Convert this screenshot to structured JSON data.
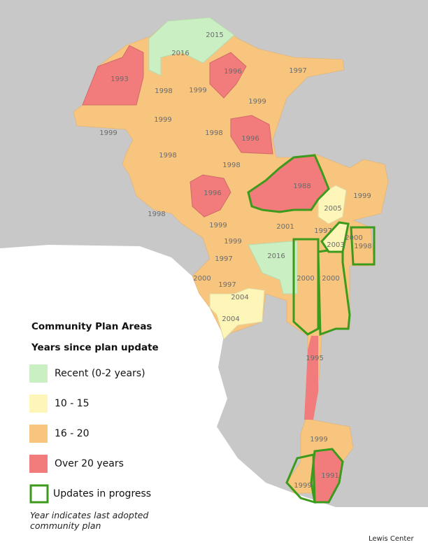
{
  "legend": {
    "title": "Community Plan Areas",
    "subtitle": "Years since plan update",
    "items": [
      {
        "label": "Recent (0-2 years)",
        "color": "#c9efc2"
      },
      {
        "label": "10 - 15",
        "color": "#fdf6b8"
      },
      {
        "label": "16 - 20",
        "color": "#f8c57f"
      },
      {
        "label": "Over 20 years",
        "color": "#f27b7b"
      },
      {
        "label": "Updates in progress",
        "color": "#3c9a1c"
      }
    ],
    "note": "Year indicates last adopted community plan"
  },
  "areas": [
    "2015",
    "2016",
    "1993",
    "1996",
    "1997",
    "1998",
    "1999",
    "1999",
    "1999",
    "1999",
    "1998",
    "1996",
    "1998",
    "1998",
    "1988",
    "1999",
    "1996",
    "2005",
    "1998",
    "1999",
    "2001",
    "1997",
    "2000",
    "2003",
    "1998",
    "1999",
    "2016",
    "1997",
    "2000",
    "1997",
    "2000",
    "2000",
    "2004",
    "2004",
    "1995",
    "1999",
    "1999",
    "1991"
  ],
  "credit": "Lewis Center"
}
